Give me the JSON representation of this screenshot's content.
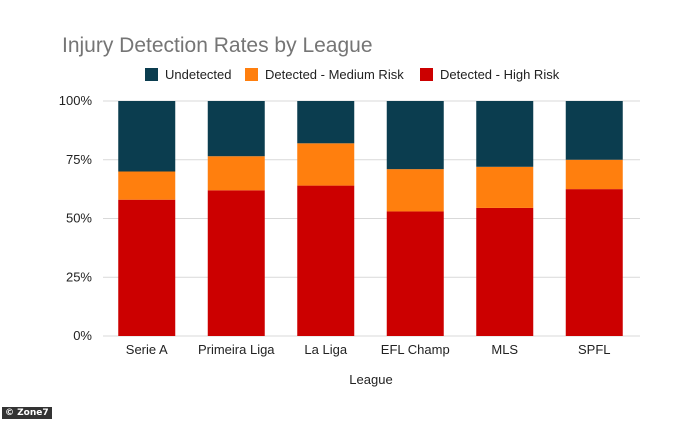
{
  "chart_data": {
    "type": "bar",
    "stacked": true,
    "title": "Injury Detection Rates by League",
    "xlabel": "League",
    "ylabel": "",
    "ylim": [
      0,
      100
    ],
    "yticks": [
      "0%",
      "25%",
      "50%",
      "75%",
      "100%"
    ],
    "categories": [
      "Serie A",
      "Primeira Liga",
      "La Liga",
      "EFL Champ",
      "MLS",
      "SPFL"
    ],
    "legend_position": "top",
    "grid": true,
    "series": [
      {
        "name": "Detected - High Risk",
        "color": "#cc0000",
        "values": [
          58,
          62,
          64,
          53,
          54.5,
          62.5
        ]
      },
      {
        "name": "Detected - Medium Risk",
        "color": "#ff7f0e",
        "values": [
          12,
          14.5,
          18,
          18,
          17.5,
          12.5
        ]
      },
      {
        "name": "Undetected",
        "color": "#0b3d4f",
        "values": [
          30,
          23.5,
          18,
          29,
          28,
          25
        ]
      }
    ],
    "legend_order": [
      "Undetected",
      "Detected - Medium Risk",
      "Detected - High Risk"
    ]
  },
  "watermark": "© Zone7"
}
